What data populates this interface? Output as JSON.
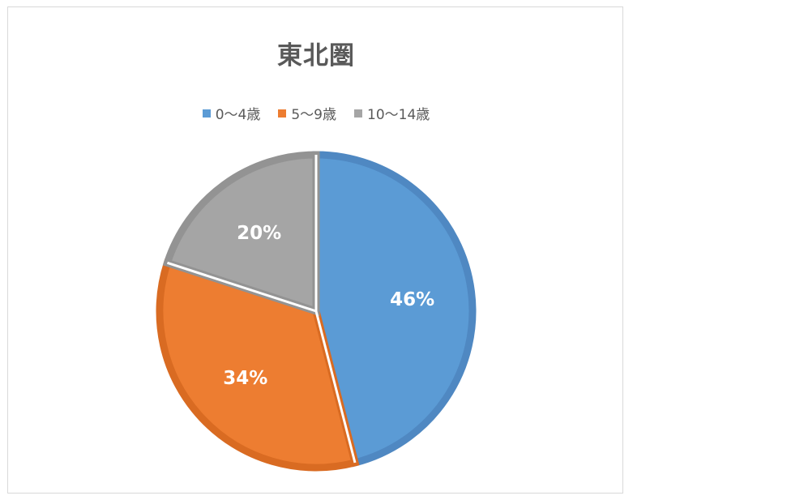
{
  "chart_data": {
    "type": "pie",
    "title": "東北圏",
    "categories": [
      "0〜4歳",
      "5〜9歳",
      "10〜14歳"
    ],
    "values": [
      46,
      34,
      20
    ],
    "data_labels": [
      "46%",
      "34%",
      "20%"
    ],
    "colors": [
      "#5b9bd5",
      "#ed7d31",
      "#a5a5a5"
    ],
    "edge_colors": [
      "#4f88c2",
      "#d96b22",
      "#939393"
    ],
    "legend_position": "top",
    "start_angle_deg": 0,
    "direction": "clockwise"
  }
}
